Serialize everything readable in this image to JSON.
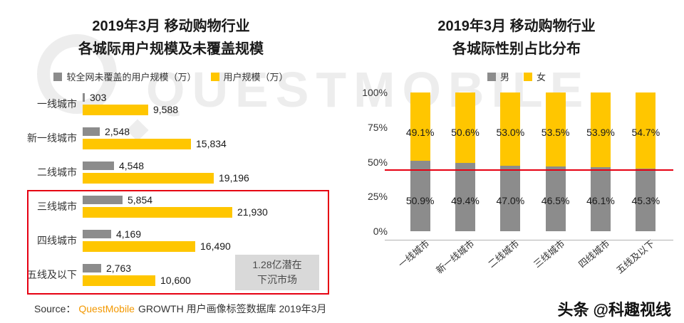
{
  "page": {
    "watermark_brand": "QUESTMOBILE",
    "source_prefix": "Source：",
    "source_brand": "QuestMobile",
    "source_suffix": "GROWTH 用户画像标签数据库 2019年3月",
    "credit_logo": "头条",
    "credit_handle": "@科趣视线"
  },
  "colors": {
    "yellow": "#FFC600",
    "gray": "#8C8C8C",
    "red": "#E60012",
    "annotation_bg": "#D9D9D9",
    "source_brand_color": "#F39800",
    "watermark_gray": "#EDEDED"
  },
  "chart_data": [
    {
      "type": "bar",
      "orientation": "horizontal",
      "title_line1": "2019年3月 移动购物行业",
      "title_line2": "各城际用户规模及未覆盖规模",
      "categories": [
        "一线城市",
        "新一线城市",
        "二线城市",
        "三线城市",
        "四线城市",
        "五线及以下"
      ],
      "series": [
        {
          "name": "较全网未覆盖的用户规模（万）",
          "color_key": "gray",
          "values": [
            303,
            2548,
            4548,
            5854,
            4169,
            2763
          ],
          "labels": [
            "303",
            "2,548",
            "4,548",
            "5,854",
            "4,169",
            "2,763"
          ]
        },
        {
          "name": "用户规模（万）",
          "color_key": "yellow",
          "values": [
            9588,
            15834,
            19196,
            21930,
            16490,
            10600
          ],
          "labels": [
            "9,588",
            "15,834",
            "19,196",
            "21,930",
            "16,490",
            "10,600"
          ]
        }
      ],
      "xlim": [
        0,
        22000
      ],
      "highlighted_categories": [
        "三线城市",
        "四线城市",
        "五线及以下"
      ],
      "annotation_line1": "1.28亿潜在",
      "annotation_line2": "下沉市场"
    },
    {
      "type": "bar",
      "subtype": "stacked-100pct",
      "title_line1": "2019年3月 移动购物行业",
      "title_line2": "各城际性别占比分布",
      "categories": [
        "一线城市",
        "新一线城市",
        "二线城市",
        "三线城市",
        "四线城市",
        "五线及以下"
      ],
      "series": [
        {
          "name": "男",
          "color_key": "gray",
          "values": [
            50.9,
            49.4,
            47.0,
            46.5,
            46.1,
            45.3
          ],
          "labels": [
            "50.9%",
            "49.4%",
            "47.0%",
            "46.5%",
            "46.1%",
            "45.3%"
          ]
        },
        {
          "name": "女",
          "color_key": "yellow",
          "values": [
            49.1,
            50.6,
            53.0,
            53.5,
            53.9,
            54.7
          ],
          "labels": [
            "49.1%",
            "50.6%",
            "53.0%",
            "53.5%",
            "53.9%",
            "54.7%"
          ]
        }
      ],
      "ylim": [
        0,
        100
      ],
      "yticks": [
        "100%",
        "75%",
        "50%",
        "25%",
        "0%"
      ],
      "reference_line_pct": 50,
      "legend_position": "top"
    }
  ]
}
